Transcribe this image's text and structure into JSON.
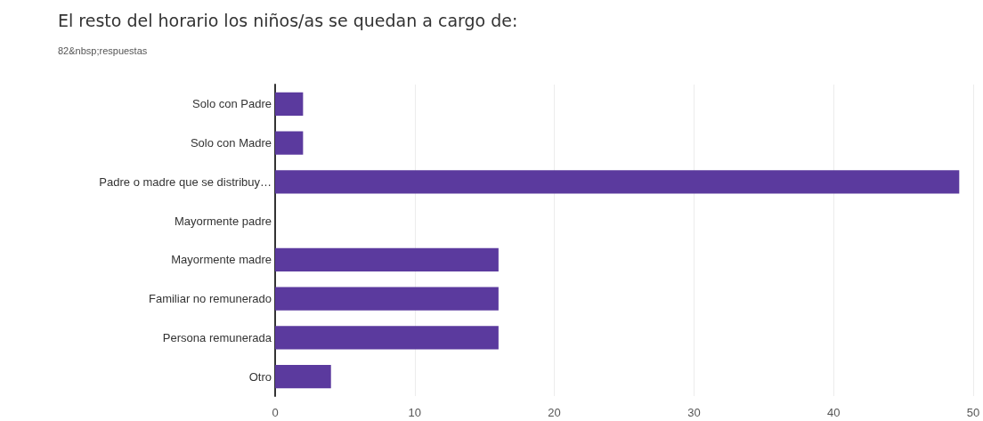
{
  "chart_data": {
    "type": "bar",
    "orientation": "horizontal",
    "title": "El resto del horario los niños/as se quedan a cargo de:",
    "subtitle": "82&nbsp;respuestas",
    "categories": [
      "Solo con Padre",
      "Solo con Madre",
      "Padre o madre que se distribuy…",
      "Mayormente padre",
      "Mayormente madre",
      "Familiar no remunerado",
      "Persona remunerada",
      "Otro"
    ],
    "values": [
      2,
      2,
      49,
      0,
      16,
      16,
      16,
      4
    ],
    "color": "#5b3a9e",
    "xlim": [
      0,
      50
    ],
    "xticks": [
      0,
      10,
      20,
      30,
      40,
      50
    ],
    "grid": "x"
  }
}
